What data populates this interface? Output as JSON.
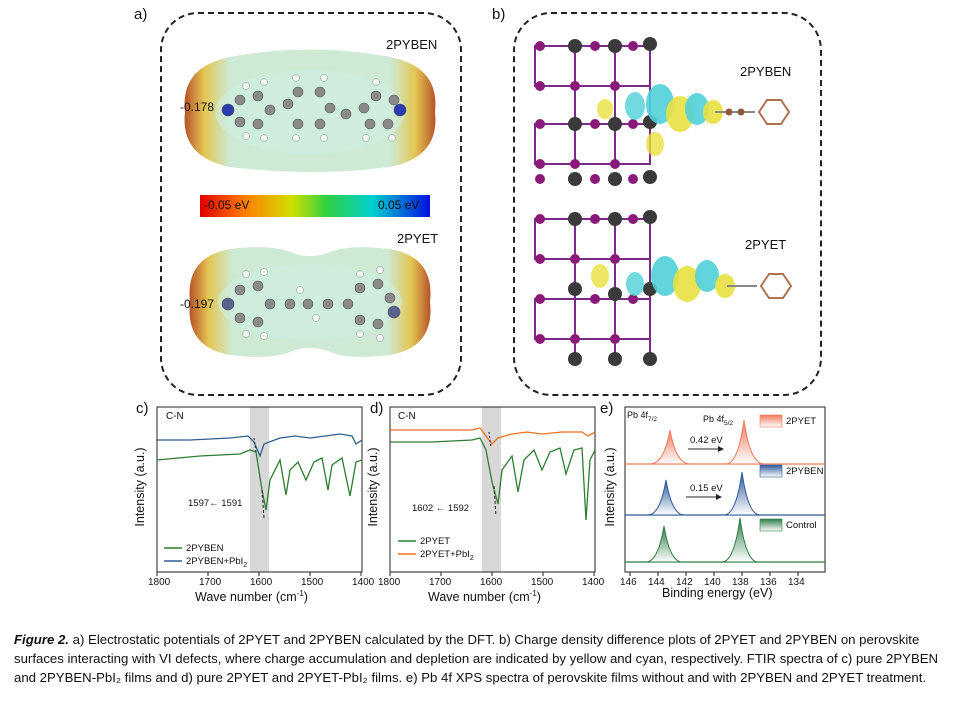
{
  "panels": {
    "a": {
      "label": "a)",
      "top_title": "2PYBEN",
      "top_value": "-0.178",
      "bottom_title": "2PYET",
      "bottom_value": "-0.197",
      "scale_min": "-0.05 eV",
      "scale_max": "0.05 eV"
    },
    "b": {
      "label": "b)",
      "top_title": "2PYBEN",
      "bottom_title": "2PYET"
    },
    "c": {
      "label": "c)",
      "tag": "C-N",
      "annot": "1597← 1591",
      "ylabel": "Intensity (a.u.)",
      "xlabel": "Wave number (cm",
      "xlabel_sup": "-1",
      "xlabel_end": ")",
      "ticks": [
        "1800",
        "1700",
        "1600",
        "1500",
        "1400"
      ],
      "legend": [
        "2PYBEN",
        "2PYBEN+PbI"
      ],
      "legend_sub": "2"
    },
    "d": {
      "label": "d)",
      "tag": "C-N",
      "annot": "1602 ← 1592",
      "ylabel": "Intensity (a.u.)",
      "xlabel": "Wave number (cm",
      "xlabel_sup": "-1",
      "xlabel_end": ")",
      "ticks": [
        "1800",
        "1700",
        "1600",
        "1500",
        "1400"
      ],
      "legend": [
        "2PYET",
        "2PYET+PbI"
      ],
      "legend_sub": "2"
    },
    "e": {
      "label": "e)",
      "peak1": "Pb 4f",
      "peak1_sub": "7/2",
      "peak2": "Pb 4f",
      "peak2_sub": "5/2",
      "shift1": "0.42 eV",
      "shift2": "0.15 eV",
      "ylabel": "Intensity (a.u.)",
      "xlabel": "Binding energy (eV)",
      "ticks": [
        "146",
        "144",
        "142",
        "140",
        "138",
        "136",
        "134"
      ],
      "legend": [
        "2PYET",
        "2PYBEN",
        "Control"
      ]
    }
  },
  "caption": {
    "lead": "Figure 2.",
    "text": " a) Electrostatic potentials of 2PYET and 2PYBEN calculated by the DFT. b) Charge density difference plots of 2PYET and 2PYBEN on perovskite surfaces interacting with VI defects, where charge accumulation and depletion are indicated by yellow and cyan, respectively. FTIR spectra of c) pure 2PYBEN and 2PYBEN-PbI₂ films and d) pure 2PYET and 2PYET-PbI₂ films. e) Pb 4f XPS spectra of perovskite films without and with 2PYBEN and 2PYET treatment."
  },
  "colors": {
    "green": "#2e7d32",
    "blue": "#2f5f8f",
    "orange": "#f07020",
    "xps_red": "#f0785a",
    "xps_blue": "#2f5a9a",
    "xps_green": "#2e7d46"
  }
}
